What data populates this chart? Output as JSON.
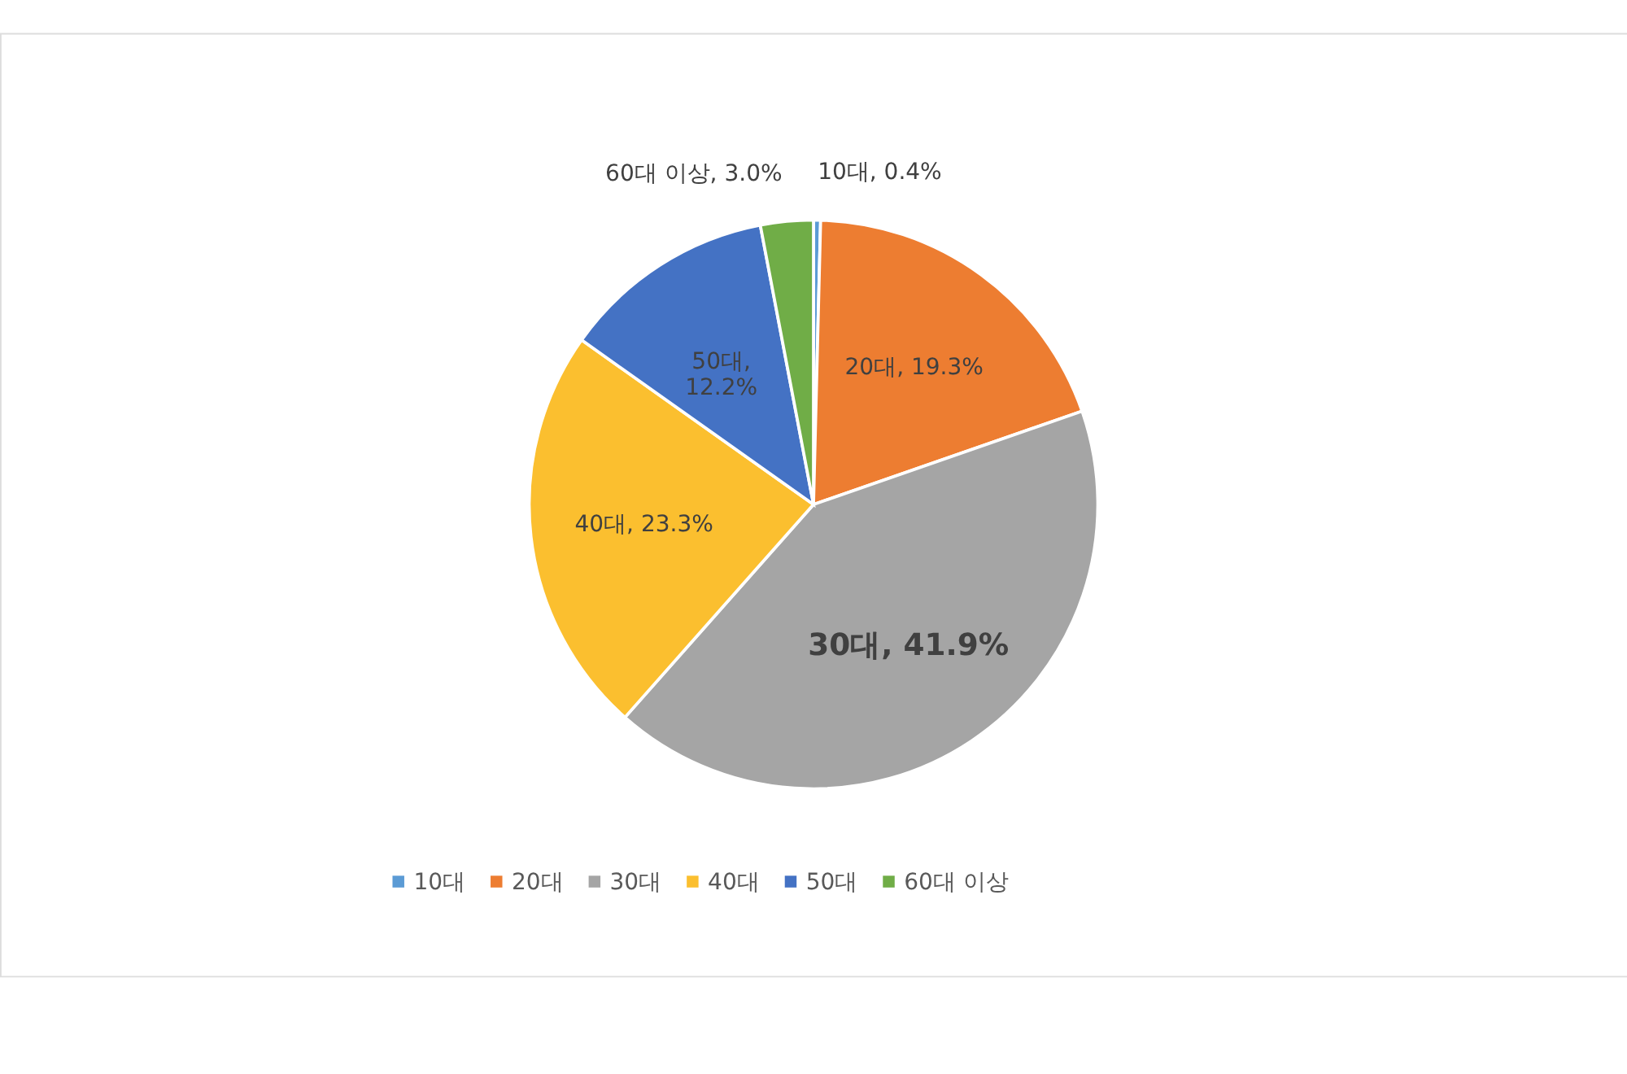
{
  "chart_data": {
    "type": "pie",
    "categories": [
      "10대",
      "20대",
      "30대",
      "40대",
      "50대",
      "60대 이상"
    ],
    "values": [
      0.4,
      19.3,
      41.9,
      23.3,
      12.2,
      3.0
    ],
    "colors": [
      "#5b9bd5",
      "#ed7d31",
      "#a5a5a5",
      "#fbbf2f",
      "#4472c4",
      "#70ad47"
    ],
    "value_labels": [
      "10대, 0.4%",
      "20대, 19.3%",
      "30대, 41.9%",
      "40대, 23.3%",
      "50대, 12.2%",
      "60대 이상, 3.0%"
    ],
    "legend": "bottom"
  }
}
